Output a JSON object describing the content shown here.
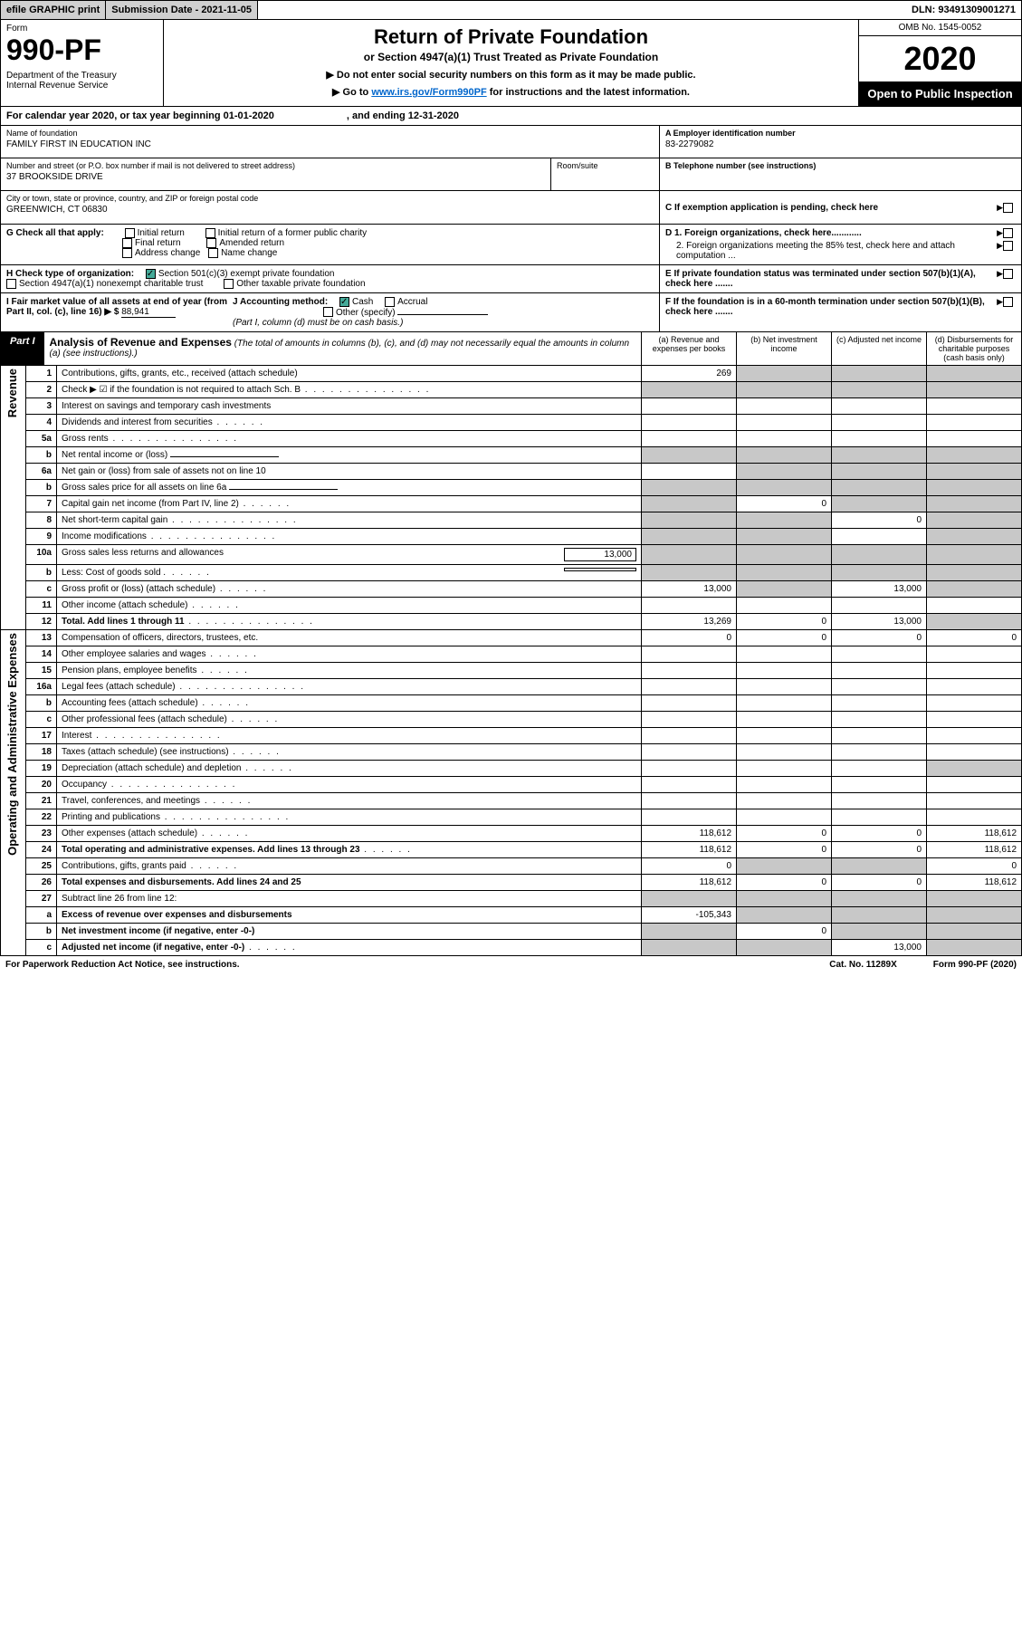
{
  "top": {
    "efile": "efile GRAPHIC print",
    "subm_label": "Submission Date - 2021-11-05",
    "dln": "DLN: 93491309001271"
  },
  "header": {
    "form_label": "Form",
    "form_num": "990-PF",
    "dept": "Department of the Treasury\nInternal Revenue Service",
    "title": "Return of Private Foundation",
    "subtitle": "or Section 4947(a)(1) Trust Treated as Private Foundation",
    "note1": "▶ Do not enter social security numbers on this form as it may be made public.",
    "note2_pre": "▶ Go to ",
    "note2_link": "www.irs.gov/Form990PF",
    "note2_post": " for instructions and the latest information.",
    "omb": "OMB No. 1545-0052",
    "year": "2020",
    "open": "Open to Public Inspection"
  },
  "calyear": {
    "text": "For calendar year 2020, or tax year beginning 01-01-2020",
    "ending": ", and ending 12-31-2020"
  },
  "filer": {
    "name_label": "Name of foundation",
    "name": "FAMILY FIRST IN EDUCATION INC",
    "addr_label": "Number and street (or P.O. box number if mail is not delivered to street address)",
    "addr": "37 BROOKSIDE DRIVE",
    "room_label": "Room/suite",
    "city_label": "City or town, state or province, country, and ZIP or foreign postal code",
    "city": "GREENWICH, CT  06830",
    "ein_label": "A Employer identification number",
    "ein": "83-2279082",
    "tel_label": "B Telephone number (see instructions)",
    "c_label": "C If exemption application is pending, check here"
  },
  "checks": {
    "g_label": "G Check all that apply:",
    "g1": "Initial return",
    "g2": "Initial return of a former public charity",
    "g3": "Final return",
    "g4": "Amended return",
    "g5": "Address change",
    "g6": "Name change",
    "h_label": "H Check type of organization:",
    "h1": "Section 501(c)(3) exempt private foundation",
    "h2": "Section 4947(a)(1) nonexempt charitable trust",
    "h3": "Other taxable private foundation",
    "i_label": "I Fair market value of all assets at end of year (from Part II, col. (c), line 16) ▶ $",
    "i_val": "88,941",
    "j_label": "J Accounting method:",
    "j1": "Cash",
    "j2": "Accrual",
    "j3": "Other (specify)",
    "j_note": "(Part I, column (d) must be on cash basis.)",
    "d1": "D 1. Foreign organizations, check here............",
    "d2": "2. Foreign organizations meeting the 85% test, check here and attach computation ...",
    "e": "E  If private foundation status was terminated under section 507(b)(1)(A), check here .......",
    "f": "F  If the foundation is in a 60-month termination under section 507(b)(1)(B), check here .......",
    "col_a": "(a) Revenue and expenses per books",
    "col_b": "(b) Net investment income",
    "col_c": "(c) Adjusted net income",
    "col_d": "(d) Disbursements for charitable purposes (cash basis only)"
  },
  "part1": {
    "tag": "Part I",
    "title": "Analysis of Revenue and Expenses",
    "note": "(The total of amounts in columns (b), (c), and (d) may not necessarily equal the amounts in column (a) (see instructions).)"
  },
  "side": {
    "rev": "Revenue",
    "exp": "Operating and Administrative Expenses"
  },
  "rows": [
    {
      "n": "1",
      "d": "Contributions, gifts, grants, etc., received (attach schedule)",
      "a": "269",
      "grey": [
        "b",
        "c",
        "d"
      ]
    },
    {
      "n": "2",
      "d": "Check ▶ ☑ if the foundation is not required to attach Sch. B",
      "dots": true,
      "grey": [
        "a",
        "b",
        "c",
        "d"
      ]
    },
    {
      "n": "3",
      "d": "Interest on savings and temporary cash investments"
    },
    {
      "n": "4",
      "d": "Dividends and interest from securities",
      "dots": "sm"
    },
    {
      "n": "5a",
      "d": "Gross rents",
      "dots": true
    },
    {
      "n": "b",
      "d": "Net rental income or (loss)",
      "ul": true,
      "grey": [
        "a",
        "b",
        "c",
        "d"
      ]
    },
    {
      "n": "6a",
      "d": "Net gain or (loss) from sale of assets not on line 10",
      "grey": [
        "b",
        "c",
        "d"
      ]
    },
    {
      "n": "b",
      "d": "Gross sales price for all assets on line 6a",
      "ul": true,
      "grey": [
        "a",
        "b",
        "c",
        "d"
      ]
    },
    {
      "n": "7",
      "d": "Capital gain net income (from Part IV, line 2)",
      "dots": "sm",
      "b": "0",
      "grey": [
        "a",
        "c",
        "d"
      ]
    },
    {
      "n": "8",
      "d": "Net short-term capital gain",
      "dots": true,
      "c": "0",
      "grey": [
        "a",
        "b",
        "d"
      ]
    },
    {
      "n": "9",
      "d": "Income modifications",
      "dots": true,
      "grey": [
        "a",
        "b",
        "d"
      ]
    },
    {
      "n": "10a",
      "d": "Gross sales less returns and allowances",
      "box": "13,000",
      "grey": [
        "a",
        "b",
        "c",
        "d"
      ]
    },
    {
      "n": "b",
      "d": "Less: Cost of goods sold",
      "dots": "sm",
      "box": "",
      "grey": [
        "a",
        "b",
        "c",
        "d"
      ]
    },
    {
      "n": "c",
      "d": "Gross profit or (loss) (attach schedule)",
      "dots": "sm",
      "a": "13,000",
      "c": "13,000",
      "grey": [
        "b",
        "d"
      ]
    },
    {
      "n": "11",
      "d": "Other income (attach schedule)",
      "dots": "sm"
    },
    {
      "n": "12",
      "d": "Total. Add lines 1 through 11",
      "dots": true,
      "bold": true,
      "a": "13,269",
      "b": "0",
      "c": "13,000",
      "grey": [
        "d"
      ]
    },
    {
      "n": "13",
      "d": "Compensation of officers, directors, trustees, etc.",
      "a": "0",
      "b": "0",
      "c": "0",
      "dv": "0"
    },
    {
      "n": "14",
      "d": "Other employee salaries and wages",
      "dots": "sm"
    },
    {
      "n": "15",
      "d": "Pension plans, employee benefits",
      "dots": "sm"
    },
    {
      "n": "16a",
      "d": "Legal fees (attach schedule)",
      "dots": true
    },
    {
      "n": "b",
      "d": "Accounting fees (attach schedule)",
      "dots": "sm"
    },
    {
      "n": "c",
      "d": "Other professional fees (attach schedule)",
      "dots": "sm"
    },
    {
      "n": "17",
      "d": "Interest",
      "dots": true
    },
    {
      "n": "18",
      "d": "Taxes (attach schedule) (see instructions)",
      "dots": "sm"
    },
    {
      "n": "19",
      "d": "Depreciation (attach schedule) and depletion",
      "dots": "sm",
      "grey": [
        "d"
      ]
    },
    {
      "n": "20",
      "d": "Occupancy",
      "dots": true
    },
    {
      "n": "21",
      "d": "Travel, conferences, and meetings",
      "dots": "sm"
    },
    {
      "n": "22",
      "d": "Printing and publications",
      "dots": true
    },
    {
      "n": "23",
      "d": "Other expenses (attach schedule)",
      "dots": "sm",
      "a": "118,612",
      "b": "0",
      "c": "0",
      "dv": "118,612"
    },
    {
      "n": "24",
      "d": "Total operating and administrative expenses. Add lines 13 through 23",
      "dots": "sm",
      "bold": true,
      "a": "118,612",
      "b": "0",
      "c": "0",
      "dv": "118,612"
    },
    {
      "n": "25",
      "d": "Contributions, gifts, grants paid",
      "dots": "sm",
      "a": "0",
      "dv": "0",
      "grey": [
        "b",
        "c"
      ]
    },
    {
      "n": "26",
      "d": "Total expenses and disbursements. Add lines 24 and 25",
      "bold": true,
      "a": "118,612",
      "b": "0",
      "c": "0",
      "dv": "118,612"
    },
    {
      "n": "27",
      "d": "Subtract line 26 from line 12:",
      "grey": [
        "a",
        "b",
        "c",
        "d"
      ]
    },
    {
      "n": "a",
      "d": "Excess of revenue over expenses and disbursements",
      "bold": true,
      "a": "-105,343",
      "grey": [
        "b",
        "c",
        "d"
      ]
    },
    {
      "n": "b",
      "d": "Net investment income (if negative, enter -0-)",
      "bold": true,
      "b": "0",
      "grey": [
        "a",
        "c",
        "d"
      ]
    },
    {
      "n": "c",
      "d": "Adjusted net income (if negative, enter -0-)",
      "dots": "sm",
      "bold": true,
      "c": "13,000",
      "grey": [
        "a",
        "b",
        "d"
      ]
    }
  ],
  "footer": {
    "l": "For Paperwork Reduction Act Notice, see instructions.",
    "m": "Cat. No. 11289X",
    "r": "Form 990-PF (2020)"
  }
}
